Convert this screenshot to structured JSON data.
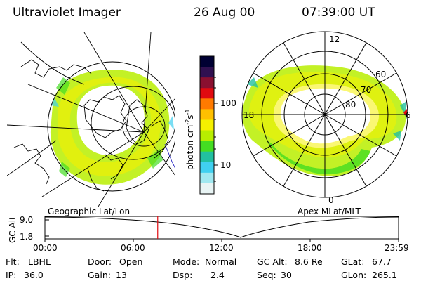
{
  "header": {
    "instrument": "Ultraviolet Imager",
    "date": "26 Aug 00",
    "time": "07:39:00 UT"
  },
  "left_map": {
    "caption": "Geographic Lat/Lon"
  },
  "right_map": {
    "caption": "Apex MLat/MLT",
    "mlt_labels": [
      "12",
      "18",
      "6",
      "0"
    ],
    "mlat_labels": [
      "60",
      "70",
      "80"
    ]
  },
  "colorbar": {
    "unit_label": "photon cm",
    "unit_sup1": "-2",
    "unit_s": "s",
    "unit_sup2": "-1",
    "ticks": [
      "100",
      "10"
    ],
    "colors": [
      "#000033",
      "#301050",
      "#8a1030",
      "#e00a10",
      "#ff7a00",
      "#ffc000",
      "#f5f000",
      "#b8ee00",
      "#44dd22",
      "#22c0a0",
      "#40d0f0",
      "#a0e8f0",
      "#e8f4f4"
    ]
  },
  "timeline": {
    "axis_title": "GC Alt",
    "y_ticks": [
      "9.0",
      "1.8"
    ],
    "x_ticks": [
      "00:00",
      "06:00",
      "12:00",
      "18:00",
      "23:59"
    ],
    "marker_time_hours": 7.65
  },
  "info": [
    [
      {
        "k": "Flt:",
        "v": "LBHL"
      },
      {
        "k": "Door:",
        "v": "Open"
      },
      {
        "k": "Mode:",
        "v": "Normal"
      },
      {
        "k": "GC Alt:",
        "v": "8.6 Re"
      },
      {
        "k": "GLat:",
        "v": "67.7"
      }
    ],
    [
      {
        "k": "IP:",
        "v": "36.0"
      },
      {
        "k": "Gain:",
        "v": "13"
      },
      {
        "k": "Dsp:",
        "v": "2.4"
      },
      {
        "k": "Seq:",
        "v": "30"
      },
      {
        "k": "GLon:",
        "v": "265.1"
      }
    ]
  ]
}
